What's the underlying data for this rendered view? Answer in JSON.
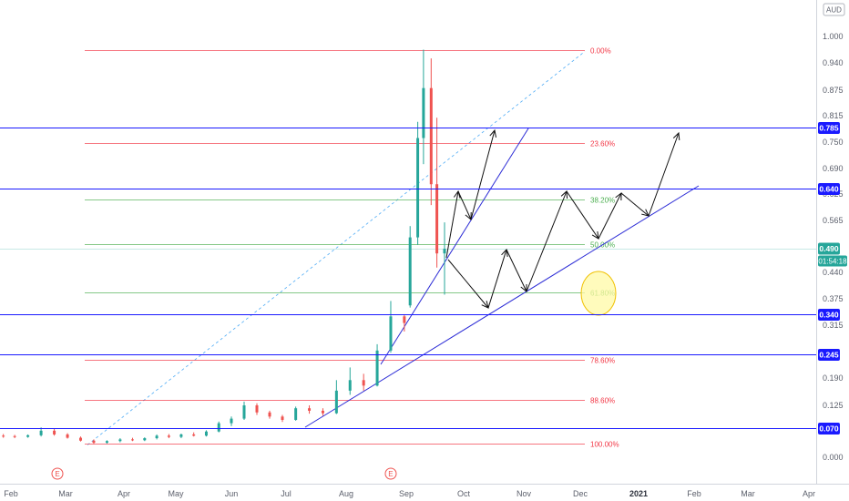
{
  "currency_badge": "AUD",
  "chart_data": {
    "type": "candlestick",
    "title": "",
    "xlabel": "",
    "ylabel": "",
    "ylim": [
      -0.07,
      1.07
    ],
    "grid": false,
    "x_ticks": [
      "Feb",
      "Mar",
      "Apr",
      "May",
      "Jun",
      "Jul",
      "Aug",
      "Sep",
      "Oct",
      "Nov",
      "Dec",
      "2021",
      "Feb",
      "Mar",
      "Apr"
    ],
    "y_ticks": [
      "1.000",
      "0.940",
      "0.875",
      "0.815",
      "0.750",
      "0.690",
      "0.625",
      "0.565",
      "0.440",
      "0.375",
      "0.315",
      "0.190",
      "0.125",
      "0.000"
    ],
    "horizontal_levels": [
      {
        "label": "0.785",
        "value": 0.785,
        "color": "#1a1aff"
      },
      {
        "label": "0.640",
        "value": 0.64,
        "color": "#1a1aff"
      },
      {
        "label": "0.340",
        "value": 0.34,
        "color": "#1a1aff"
      },
      {
        "label": "0.245",
        "value": 0.245,
        "color": "#1a1aff"
      },
      {
        "label": "0.070",
        "value": 0.07,
        "color": "#1a1aff"
      }
    ],
    "current_price": {
      "label": "0.490",
      "value": 0.49,
      "countdown": "01:54:18",
      "color": "#26a69a"
    },
    "fibonacci": {
      "high": 0.97,
      "low": 0.032,
      "levels": [
        {
          "label": "0.00%",
          "ratio": 0.0,
          "color": "#f23645"
        },
        {
          "label": "23.60%",
          "ratio": 0.236,
          "color": "#f23645"
        },
        {
          "label": "38.20%",
          "ratio": 0.382,
          "color": "#4caf50"
        },
        {
          "label": "50.00%",
          "ratio": 0.5,
          "color": "#4caf50"
        },
        {
          "label": "61.80%",
          "ratio": 0.618,
          "color": "#4caf50"
        },
        {
          "label": "78.60%",
          "ratio": 0.786,
          "color": "#f23645"
        },
        {
          "label": "88.60%",
          "ratio": 0.886,
          "color": "#f23645"
        },
        {
          "label": "100.00%",
          "ratio": 1.0,
          "color": "#f23645"
        }
      ]
    },
    "event_markers": [
      "E",
      "E"
    ],
    "candles": [
      {
        "date": "2020-01-27",
        "open": 0.052,
        "high": 0.056,
        "low": 0.047,
        "close": 0.051
      },
      {
        "date": "2020-02-03",
        "open": 0.051,
        "high": 0.054,
        "low": 0.046,
        "close": 0.049
      },
      {
        "date": "2020-02-10",
        "open": 0.049,
        "high": 0.055,
        "low": 0.047,
        "close": 0.053
      },
      {
        "date": "2020-02-17",
        "open": 0.053,
        "high": 0.072,
        "low": 0.05,
        "close": 0.064
      },
      {
        "date": "2020-02-24",
        "open": 0.064,
        "high": 0.068,
        "low": 0.052,
        "close": 0.055
      },
      {
        "date": "2020-03-02",
        "open": 0.055,
        "high": 0.058,
        "low": 0.045,
        "close": 0.047
      },
      {
        "date": "2020-03-09",
        "open": 0.047,
        "high": 0.05,
        "low": 0.038,
        "close": 0.04
      },
      {
        "date": "2020-03-16",
        "open": 0.04,
        "high": 0.043,
        "low": 0.032,
        "close": 0.035
      },
      {
        "date": "2020-03-23",
        "open": 0.035,
        "high": 0.041,
        "low": 0.033,
        "close": 0.039
      },
      {
        "date": "2020-03-30",
        "open": 0.039,
        "high": 0.046,
        "low": 0.036,
        "close": 0.043
      },
      {
        "date": "2020-04-06",
        "open": 0.043,
        "high": 0.047,
        "low": 0.039,
        "close": 0.041
      },
      {
        "date": "2020-04-13",
        "open": 0.041,
        "high": 0.048,
        "low": 0.039,
        "close": 0.046
      },
      {
        "date": "2020-04-20",
        "open": 0.046,
        "high": 0.055,
        "low": 0.043,
        "close": 0.052
      },
      {
        "date": "2020-04-27",
        "open": 0.052,
        "high": 0.056,
        "low": 0.046,
        "close": 0.049
      },
      {
        "date": "2020-05-04",
        "open": 0.049,
        "high": 0.057,
        "low": 0.046,
        "close": 0.055
      },
      {
        "date": "2020-05-11",
        "open": 0.055,
        "high": 0.06,
        "low": 0.05,
        "close": 0.052
      },
      {
        "date": "2020-05-18",
        "open": 0.052,
        "high": 0.065,
        "low": 0.05,
        "close": 0.062
      },
      {
        "date": "2020-05-25",
        "open": 0.062,
        "high": 0.086,
        "low": 0.06,
        "close": 0.082
      },
      {
        "date": "2020-06-01",
        "open": 0.082,
        "high": 0.098,
        "low": 0.075,
        "close": 0.093
      },
      {
        "date": "2020-06-08",
        "open": 0.093,
        "high": 0.134,
        "low": 0.09,
        "close": 0.125
      },
      {
        "date": "2020-06-15",
        "open": 0.125,
        "high": 0.13,
        "low": 0.102,
        "close": 0.108
      },
      {
        "date": "2020-06-22",
        "open": 0.108,
        "high": 0.112,
        "low": 0.093,
        "close": 0.098
      },
      {
        "date": "2020-06-29",
        "open": 0.098,
        "high": 0.102,
        "low": 0.085,
        "close": 0.09
      },
      {
        "date": "2020-07-06",
        "open": 0.09,
        "high": 0.122,
        "low": 0.088,
        "close": 0.118
      },
      {
        "date": "2020-07-13",
        "open": 0.118,
        "high": 0.125,
        "low": 0.105,
        "close": 0.112
      },
      {
        "date": "2020-07-20",
        "open": 0.112,
        "high": 0.118,
        "low": 0.1,
        "close": 0.106
      },
      {
        "date": "2020-07-27",
        "open": 0.106,
        "high": 0.185,
        "low": 0.104,
        "close": 0.16
      },
      {
        "date": "2020-08-03",
        "open": 0.16,
        "high": 0.215,
        "low": 0.15,
        "close": 0.185
      },
      {
        "date": "2020-08-10",
        "open": 0.185,
        "high": 0.2,
        "low": 0.16,
        "close": 0.172
      },
      {
        "date": "2020-08-17",
        "open": 0.172,
        "high": 0.27,
        "low": 0.17,
        "close": 0.255
      },
      {
        "date": "2020-08-24",
        "open": 0.255,
        "high": 0.37,
        "low": 0.25,
        "close": 0.335
      },
      {
        "date": "2020-08-31",
        "open": 0.335,
        "high": 0.34,
        "low": 0.3,
        "close": 0.32
      },
      {
        "date": "2020-09-03",
        "open": 0.36,
        "high": 0.55,
        "low": 0.355,
        "close": 0.52
      },
      {
        "date": "2020-09-07",
        "open": 0.52,
        "high": 0.8,
        "low": 0.5,
        "close": 0.76
      },
      {
        "date": "2020-09-10",
        "open": 0.76,
        "high": 0.97,
        "low": 0.7,
        "close": 0.88
      },
      {
        "date": "2020-09-14",
        "open": 0.88,
        "high": 0.95,
        "low": 0.6,
        "close": 0.65
      },
      {
        "date": "2020-09-17",
        "open": 0.65,
        "high": 0.81,
        "low": 0.45,
        "close": 0.48
      },
      {
        "date": "2020-09-21",
        "open": 0.48,
        "high": 0.56,
        "low": 0.385,
        "close": 0.49
      }
    ]
  }
}
